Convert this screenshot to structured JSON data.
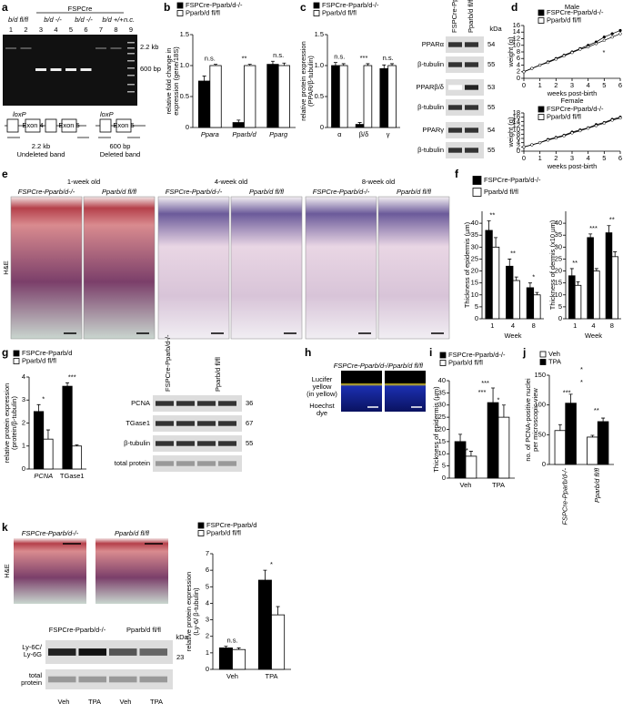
{
  "panel_labels": [
    "a",
    "b",
    "c",
    "d",
    "e",
    "f",
    "g",
    "h",
    "i",
    "j",
    "k"
  ],
  "gel": {
    "header": "FSPCre",
    "genotypes": [
      "b/d fl/fl",
      "b/d -/-",
      "b/d -/-",
      "b/d +/+",
      "n.c."
    ],
    "lanes": [
      "1",
      "2",
      "3",
      "4",
      "5",
      "6",
      "7",
      "8",
      "9"
    ],
    "sizes": [
      "2.2 kb",
      "600 bp"
    ],
    "diagram": [
      "loxP",
      "Exon 4",
      "Exon 5",
      "loxP",
      "Exon 5",
      "2.2 kb",
      "Undeleted band",
      "600 bp",
      "Deleted band"
    ]
  },
  "blots_c": {
    "columns": [
      "FSPCre-Pparb/d-/-",
      "Pparb/d fl/fl"
    ],
    "unit": "kDa",
    "rows": [
      {
        "label": "PPARα",
        "kda": "54"
      },
      {
        "label": "β-tubulin",
        "kda": "55"
      },
      {
        "label": "PPARβ/δ",
        "kda": "53"
      },
      {
        "label": "β-tubulin",
        "kda": "55"
      },
      {
        "label": "PPARγ",
        "kda": "54"
      },
      {
        "label": "β-tubulin",
        "kda": "55"
      }
    ]
  },
  "histology_e": {
    "ages": [
      "1-week old",
      "4-week old",
      "8-week old"
    ],
    "genotypes": [
      "FSPCre-Pparb/d-/-",
      "Pparb/d fl/fl"
    ],
    "stain": "H&E"
  },
  "blots_g": {
    "columns": [
      "FSPCre-Pparb/d-/-",
      "Pparb/d fl/fl"
    ],
    "rows": [
      {
        "label": "PCNA",
        "kda": "36"
      },
      {
        "label": "TGase1",
        "kda": "67"
      },
      {
        "label": "β-tubulin",
        "kda": "55"
      },
      {
        "label": "total protein"
      }
    ]
  },
  "fluorescence_h": {
    "genotypes": [
      "FSPCre-Pparb/d-/-",
      "Pparb/d fl/fl"
    ],
    "dye1": [
      "Lucifer",
      "yellow",
      "(in yellow)"
    ],
    "dye2": [
      "Hoechst",
      "dye"
    ]
  },
  "histology_k": {
    "genotypes": [
      "FSPCre-Pparb/d-/-",
      "Pparb/d fl/fl"
    ],
    "stain": "H&E"
  },
  "blots_k": {
    "columns": [
      "FSPCre-Pparb/d-/-",
      "Pparb/d fl/fl"
    ],
    "unit": "kDa",
    "rows": [
      {
        "label": [
          "Ly-6C/",
          "Ly-6G"
        ],
        "kda": "23"
      },
      {
        "label": [
          "total",
          "protein"
        ]
      }
    ],
    "lanes": [
      "Veh",
      "TPA",
      "Veh",
      "TPA"
    ]
  },
  "chart_data": [
    {
      "type": "bar",
      "ylabel": [
        "relative fold change in",
        "expression (gene/18S)"
      ],
      "categories": [
        "Ppara",
        "Pparb/d",
        "Pparg"
      ],
      "series": [
        {
          "name": "FSPCre-Pparb/d-/-",
          "color": "#000000",
          "values": [
            0.75,
            0.08,
            1.02
          ],
          "errors": [
            0.08,
            0.04,
            0.05
          ]
        },
        {
          "name": "Pparb/d fl/fl",
          "color": "#ffffff",
          "values": [
            1,
            1,
            1
          ],
          "errors": [
            0.02,
            0.02,
            0.04
          ]
        }
      ],
      "ylim": [
        0,
        1.5
      ],
      "yticks": [
        0,
        0.5,
        {
          "value": 1,
          "label": "1.0"
        },
        1.5
      ],
      "annotations": [
        "n.s.",
        "**",
        "n.s."
      ]
    },
    {
      "type": "bar",
      "ylabel": [
        "relative protein expression",
        "(PPAR/β-tubulin)"
      ],
      "categories": [
        "α",
        "β/δ",
        "γ"
      ],
      "series": [
        {
          "name": "FSPCre-Pparb/d-/-",
          "color": "#000000",
          "values": [
            1.0,
            0.05,
            0.95
          ],
          "errors": [
            0.05,
            0.03,
            0.06
          ]
        },
        {
          "name": "Pparb/d fl/fl",
          "color": "#ffffff",
          "values": [
            1,
            1,
            1
          ],
          "errors": [
            0.03,
            0.03,
            0.03
          ]
        }
      ],
      "ylim": [
        0,
        1.5
      ],
      "yticks": [
        0,
        0.5,
        {
          "value": 1,
          "label": "1.0"
        },
        1.5
      ],
      "annotations": [
        "n.s.",
        "***",
        "n.s."
      ]
    },
    {
      "type": "line",
      "title": "Male",
      "xlabel": "weeks post-birth",
      "ylabel": [
        "weight (g)"
      ],
      "x": [
        0,
        0.5,
        1,
        1.5,
        2,
        2.5,
        3,
        3.5,
        4,
        4.5,
        5,
        5.5,
        6
      ],
      "series": [
        {
          "name": "FSPCre-Pparb/d-/-",
          "color": "#000000",
          "values": [
            2,
            3,
            4,
            5,
            6,
            7,
            8,
            9,
            10,
            11,
            12.5,
            13.5,
            14.5
          ]
        },
        {
          "name": "Pparb/d fl/fl",
          "color": "#ffffff",
          "values": [
            2,
            3,
            4,
            4.8,
            5.8,
            6.8,
            7.8,
            8.8,
            9.5,
            10.5,
            11.5,
            12.5,
            13.5
          ]
        }
      ],
      "xlim": [
        0,
        6
      ],
      "xticks": [
        0,
        1,
        2,
        3,
        4,
        5,
        6
      ],
      "ylim": [
        0,
        16
      ],
      "yticks": [
        0,
        2,
        4,
        6,
        8,
        10,
        12,
        14,
        16
      ],
      "annotations": [
        "*"
      ]
    },
    {
      "type": "line",
      "title": "Female",
      "xlabel": "weeks post-birth",
      "ylabel": [
        "weight (g)"
      ],
      "x": [
        0,
        0.5,
        1,
        1.5,
        2,
        2.5,
        3,
        3.5,
        4,
        4.5,
        5,
        5.5,
        6
      ],
      "series": [
        {
          "name": "FSPCre-Pparb/d-/-",
          "color": "#000000",
          "values": [
            2,
            3,
            4,
            5.5,
            6.5,
            7.5,
            9,
            10,
            11,
            12.5,
            13.5,
            15,
            16
          ]
        },
        {
          "name": "Pparb/d fl/fl",
          "color": "#ffffff",
          "values": [
            2,
            3,
            4,
            5.2,
            6.2,
            7.2,
            8.6,
            9.6,
            10.8,
            12,
            13.2,
            14.6,
            15.6
          ]
        }
      ],
      "xlim": [
        0,
        6
      ],
      "xticks": [
        0,
        1,
        2,
        3,
        4,
        5,
        6
      ],
      "ylim": [
        0,
        18
      ],
      "yticks": [
        0,
        2,
        4,
        6,
        8,
        10,
        12,
        14,
        16,
        18
      ]
    },
    {
      "type": "bar",
      "ylabel": [
        "Thickness of epidermis (µm)"
      ],
      "xlabel": "Week",
      "categories": [
        "1",
        "4",
        "8"
      ],
      "series": [
        {
          "name": "FSPCre-Pparb/d-/-",
          "color": "#000000",
          "values": [
            37,
            22,
            13
          ],
          "errors": [
            4,
            3,
            2
          ]
        },
        {
          "name": "Pparb/d fl/fl",
          "color": "#ffffff",
          "values": [
            30,
            16,
            10
          ],
          "errors": [
            4,
            1.5,
            1
          ]
        }
      ],
      "ylim": [
        0,
        45
      ],
      "yticks": [
        0,
        5,
        10,
        15,
        20,
        25,
        30,
        35,
        40
      ],
      "annotations": [
        "**",
        "**",
        "*"
      ]
    },
    {
      "type": "bar",
      "ylabel": [
        "Thickness of dermis (x10 µm)"
      ],
      "xlabel": "Week",
      "categories": [
        "1",
        "4",
        "8"
      ],
      "series": [
        {
          "color": "#000000",
          "values": [
            18,
            34,
            36
          ],
          "errors": [
            3,
            1.5,
            3
          ]
        },
        {
          "color": "#ffffff",
          "values": [
            14,
            20,
            26
          ],
          "errors": [
            1.5,
            1,
            2
          ]
        }
      ],
      "ylim": [
        0,
        45
      ],
      "yticks": [
        0,
        5,
        10,
        15,
        20,
        25,
        30,
        35,
        40
      ],
      "annotations": [
        "**",
        "***",
        "**"
      ]
    },
    {
      "type": "bar",
      "ylabel": [
        "relative protein expression",
        "(protein/β-tubulin)"
      ],
      "categories": [
        "PCNA",
        "TGase1"
      ],
      "series": [
        {
          "name": "FSPCre-Pparb/d",
          "color": "#000000",
          "values": [
            2.5,
            3.6
          ],
          "errors": [
            0.3,
            0.15
          ]
        },
        {
          "name": "Pparb/d fl/fl",
          "color": "#ffffff",
          "values": [
            1.3,
            1.0
          ],
          "errors": [
            0.4,
            0.05
          ]
        }
      ],
      "ylim": [
        0,
        4
      ],
      "yticks": [
        0,
        1,
        2,
        3,
        4
      ],
      "annotations": [
        "*",
        "***"
      ]
    },
    {
      "type": "bar",
      "ylabel": [
        "Thickness of epidermis (µm)"
      ],
      "categories": [
        "Veh",
        "TPA"
      ],
      "series": [
        {
          "name": "FSPCre-Pparb/d-/-",
          "color": "#000000",
          "values": [
            15,
            31
          ],
          "errors": [
            3,
            6
          ]
        },
        {
          "name": "Pparb/d fl/fl",
          "color": "#ffffff",
          "values": [
            9,
            25
          ],
          "errors": [
            2,
            5
          ]
        }
      ],
      "ylim": [
        0,
        40
      ],
      "yticks": [
        0,
        5,
        10,
        15,
        20,
        25,
        30,
        35,
        40
      ],
      "annotations": [
        "**",
        "*",
        "***",
        "***"
      ]
    },
    {
      "type": "bar",
      "ylabel": [
        "no. of PCNA-positive nuclei",
        "per microscopic view"
      ],
      "categories": [
        "FSPCre-Pparb/d-/-",
        "Pparb/d fl/fl"
      ],
      "series": [
        {
          "name": "Veh",
          "color": "#ffffff",
          "values": [
            57,
            46
          ],
          "errors": [
            10,
            3
          ]
        },
        {
          "name": "TPA",
          "color": "#000000",
          "values": [
            103,
            72
          ],
          "errors": [
            15,
            6
          ]
        }
      ],
      "ylim": [
        0,
        150
      ],
      "yticks": [
        0,
        50,
        100,
        150
      ],
      "annotations": [
        "***",
        "**",
        "*",
        "*"
      ]
    },
    {
      "type": "bar",
      "ylabel": [
        "relative protein expression",
        "(Ly-6/ β-tubulin)"
      ],
      "categories": [
        "Veh",
        "TPA"
      ],
      "series": [
        {
          "name": "FSPCre-Pparb/d",
          "color": "#000000",
          "values": [
            1.3,
            5.4
          ],
          "errors": [
            0.1,
            0.6
          ]
        },
        {
          "name": "Pparb/d fl/fl",
          "color": "#ffffff",
          "values": [
            1.2,
            3.3
          ],
          "errors": [
            0.1,
            0.5
          ]
        }
      ],
      "ylim": [
        0,
        7
      ],
      "yticks": [
        0,
        1,
        2,
        3,
        4,
        5,
        6,
        7
      ],
      "annotations": [
        "n.s.",
        "*"
      ]
    }
  ]
}
